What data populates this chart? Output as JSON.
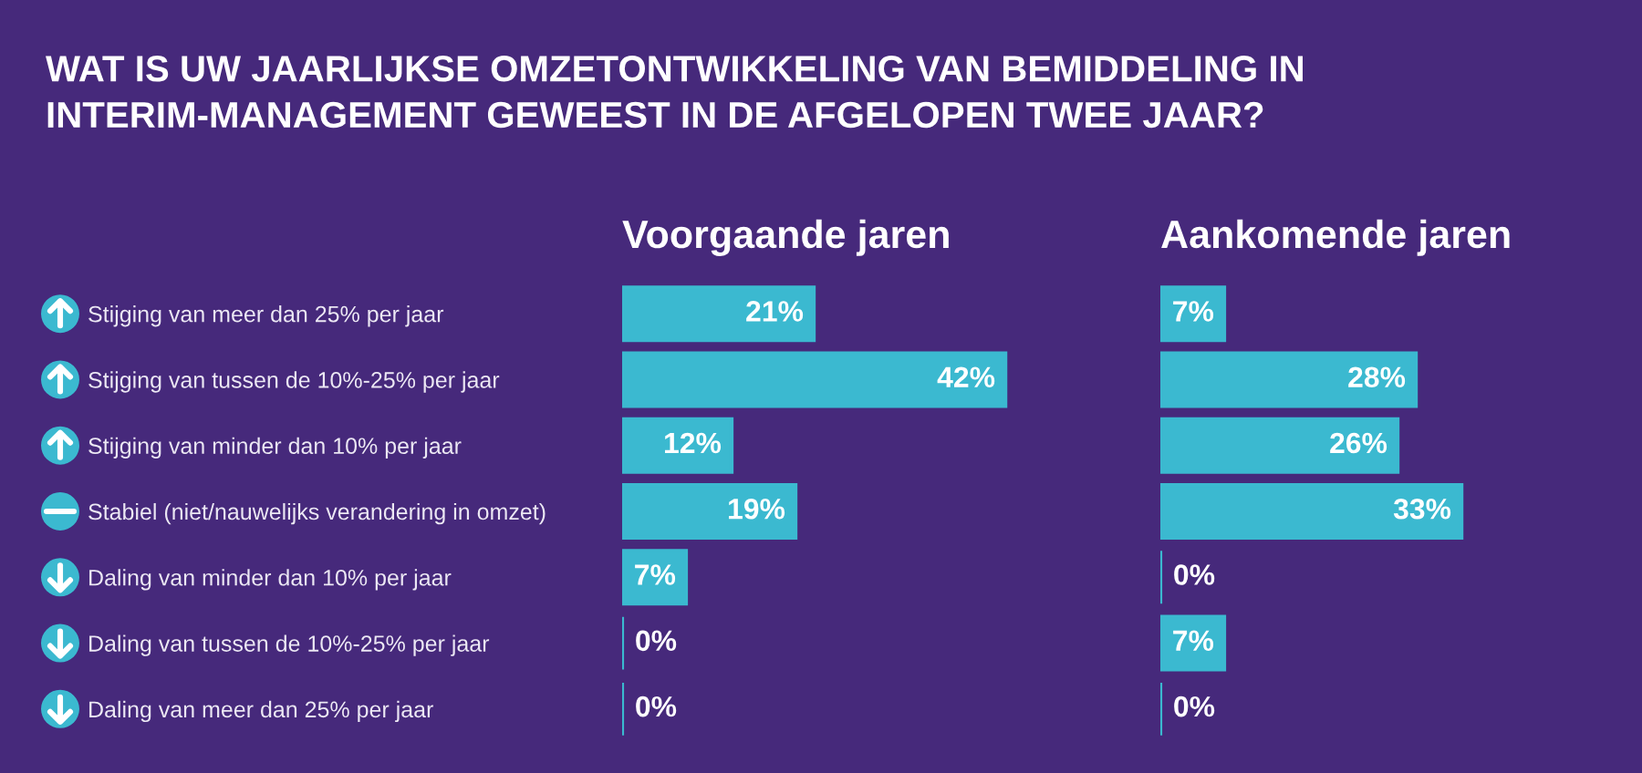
{
  "chart_data": [
    {
      "type": "bar",
      "orientation": "horizontal",
      "title": "WAT IS UW JAARLIJKSE OMZETONTWIKKELING VAN BEMIDDELING IN INTERIM-MANAGEMENT GEWEEST IN DE AFGELOPEN TWEE JAAR?",
      "subtitle": "Voorgaande jaren",
      "categories": [
        "Stijging van meer dan 25% per jaar",
        "Stijging van tussen de 10%-25% per jaar",
        "Stijging van minder dan 10% per jaar",
        "Stabiel (niet/nauwelijks verandering in omzet)",
        "Daling van minder dan 10% per jaar",
        "Daling van tussen de 10%-25% per jaar",
        "Daling van meer dan 25% per jaar"
      ],
      "values": [
        21,
        42,
        12,
        19,
        7,
        0,
        0
      ],
      "value_labels": [
        "21%",
        "42%",
        "12%",
        "19%",
        "7%",
        "0%",
        "0%"
      ],
      "color": "#3bb9d0",
      "tick_labels": "y"
    },
    {
      "type": "bar",
      "orientation": "horizontal",
      "subtitle": "Aankomende jaren",
      "categories": [
        null,
        null,
        null,
        null,
        null,
        null,
        null
      ],
      "values": [
        7,
        28,
        26,
        33,
        0,
        7,
        0
      ],
      "value_labels": [
        "7%",
        "28%",
        "26%",
        "33%",
        "0%",
        "7%",
        "0%"
      ],
      "color": "#3bb9d0",
      "tick_labels": false
    }
  ]
}
